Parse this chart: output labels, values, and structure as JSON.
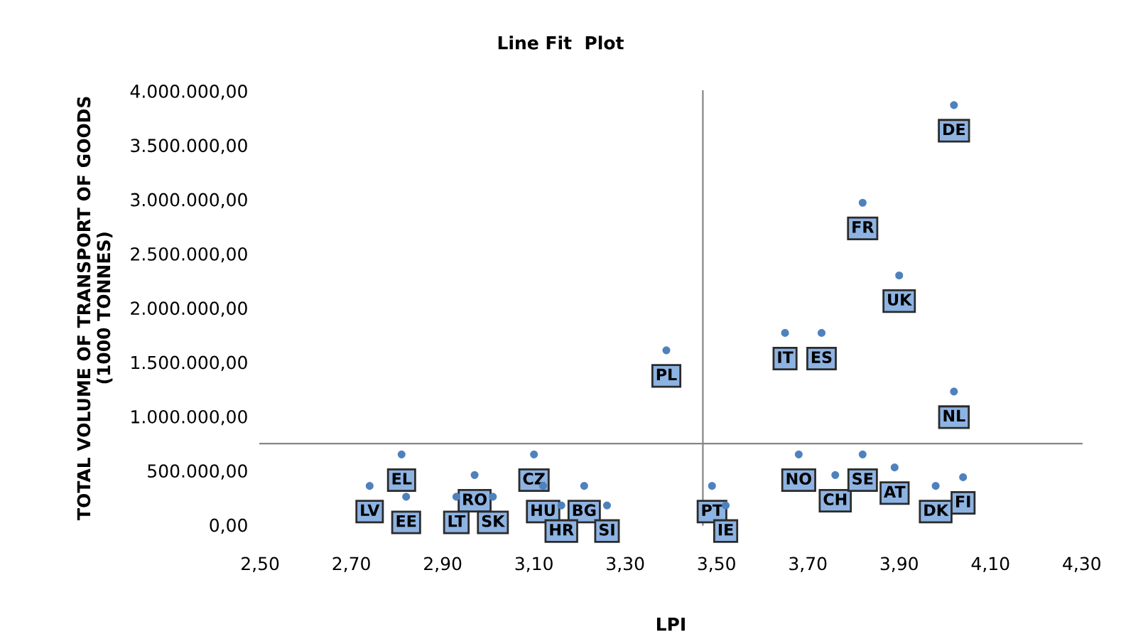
{
  "chart_data": {
    "type": "scatter",
    "title": "Line Fit  Plot",
    "xlabel": "LPI",
    "ylabel": "TOTAL VOLUME OF TRANSPORT OF GOODS\n(1000 TONNES)",
    "x": [
      3.39,
      2.81,
      2.74,
      2.82,
      2.97,
      2.93,
      3.01,
      3.1,
      3.12,
      3.21,
      3.16,
      3.26,
      3.49,
      3.52,
      4.02,
      3.82,
      3.9,
      3.65,
      3.73,
      4.02,
      3.68,
      3.76,
      3.82,
      3.89,
      3.98,
      4.04
    ],
    "series": [
      {
        "color": "#4f81bd",
        "values": [
          1610000,
          650000,
          360000,
          260000,
          460000,
          260000,
          260000,
          650000,
          360000,
          360000,
          180000,
          180000,
          360000,
          180000,
          3870000,
          2970000,
          2300000,
          1770000,
          1770000,
          1230000,
          650000,
          460000,
          650000,
          530000,
          360000,
          440000
        ]
      }
    ],
    "annotations": [
      {
        "text": "PL",
        "x": 3.39,
        "y": 1610000
      },
      {
        "text": "EL",
        "x": 2.81,
        "y": 650000
      },
      {
        "text": "LV",
        "x": 2.74,
        "y": 360000
      },
      {
        "text": "EE",
        "x": 2.82,
        "y": 260000
      },
      {
        "text": "RO",
        "x": 2.97,
        "y": 460000
      },
      {
        "text": "LT",
        "x": 2.93,
        "y": 260000
      },
      {
        "text": "SK",
        "x": 3.01,
        "y": 260000
      },
      {
        "text": "CZ",
        "x": 3.1,
        "y": 650000
      },
      {
        "text": "HU",
        "x": 3.12,
        "y": 360000
      },
      {
        "text": "BG",
        "x": 3.21,
        "y": 360000
      },
      {
        "text": "HR",
        "x": 3.16,
        "y": 180000
      },
      {
        "text": "SI",
        "x": 3.26,
        "y": 180000
      },
      {
        "text": "PT",
        "x": 3.49,
        "y": 360000
      },
      {
        "text": "IE",
        "x": 3.52,
        "y": 180000
      },
      {
        "text": "DE",
        "x": 4.02,
        "y": 3870000
      },
      {
        "text": "FR",
        "x": 3.82,
        "y": 2970000
      },
      {
        "text": "UK",
        "x": 3.9,
        "y": 2300000
      },
      {
        "text": "IT",
        "x": 3.65,
        "y": 1770000
      },
      {
        "text": "ES",
        "x": 3.73,
        "y": 1770000
      },
      {
        "text": "NL",
        "x": 4.02,
        "y": 1230000
      },
      {
        "text": "NO",
        "x": 3.68,
        "y": 650000
      },
      {
        "text": "CH",
        "x": 3.76,
        "y": 460000
      },
      {
        "text": "SE",
        "x": 3.82,
        "y": 650000
      },
      {
        "text": "AT",
        "x": 3.89,
        "y": 530000
      },
      {
        "text": "DK",
        "x": 3.98,
        "y": 360000
      },
      {
        "text": "FI",
        "x": 4.04,
        "y": 440000
      }
    ],
    "xlim": [
      2.5,
      4.3
    ],
    "xticks": [
      {
        "value": 2.5,
        "label": "2,50"
      },
      {
        "value": 2.7,
        "label": "2,70"
      },
      {
        "value": 2.9,
        "label": "2,90"
      },
      {
        "value": 3.1,
        "label": "3,10"
      },
      {
        "value": 3.3,
        "label": "3,30"
      },
      {
        "value": 3.5,
        "label": "3,50"
      },
      {
        "value": 3.7,
        "label": "3,70"
      },
      {
        "value": 3.9,
        "label": "3,90"
      },
      {
        "value": 4.1,
        "label": "4,10"
      },
      {
        "value": 4.3,
        "label": "4,30"
      }
    ],
    "ylim": [
      0,
      4000000
    ],
    "yticks": [
      {
        "value": 0,
        "label": "0,00"
      },
      {
        "value": 500000,
        "label": "500.000,00"
      },
      {
        "value": 1000000,
        "label": "1.000.000,00"
      },
      {
        "value": 1500000,
        "label": "1.500.000,00"
      },
      {
        "value": 2000000,
        "label": "2.000.000,00"
      },
      {
        "value": 2500000,
        "label": "2.500.000,00"
      },
      {
        "value": 3000000,
        "label": "3.000.000,00"
      },
      {
        "value": 3500000,
        "label": "3.500.000,00"
      },
      {
        "value": 4000000,
        "label": "4.000.000,00"
      }
    ],
    "ref_lines": [
      {
        "axis": "x",
        "value": 3.47,
        "color": "#868686"
      },
      {
        "axis": "y",
        "value": 750000,
        "color": "#868686"
      }
    ],
    "marker": "circle",
    "grid": false,
    "legend": false
  }
}
